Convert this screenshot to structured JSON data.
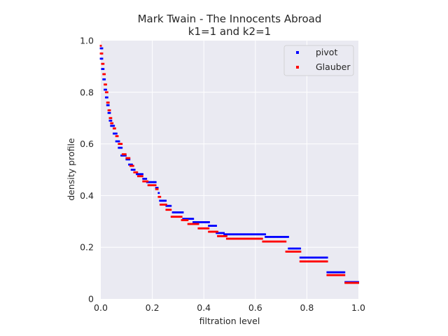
{
  "chart_data": {
    "type": "scatter",
    "title": "Mark Twain - The Innocents Abroad",
    "subtitle": "k1=1 and k2=1",
    "xlabel": "filtration level",
    "ylabel": "density profile",
    "xlim": [
      0.0,
      1.0
    ],
    "ylim": [
      0.0,
      1.0
    ],
    "xticks": [
      "0.0",
      "0.2",
      "0.4",
      "0.6",
      "0.8",
      "1.0"
    ],
    "yticks": [
      "0",
      "0.2",
      "0.4",
      "0.6",
      "0.8",
      "1.0"
    ],
    "grid": true,
    "background": "#eaeaf2",
    "legend_position": "top-right",
    "series": [
      {
        "name": "pivot",
        "color": "#0000ff",
        "segments": [
          {
            "x": [
              0.0,
              0.01
            ],
            "y": 0.97
          },
          {
            "x": [
              0.0,
              0.01
            ],
            "y": 0.93
          },
          {
            "x": [
              0.005,
              0.015
            ],
            "y": 0.89
          },
          {
            "x": [
              0.01,
              0.02
            ],
            "y": 0.85
          },
          {
            "x": [
              0.015,
              0.025
            ],
            "y": 0.81
          },
          {
            "x": [
              0.02,
              0.03
            ],
            "y": 0.78
          },
          {
            "x": [
              0.025,
              0.035
            ],
            "y": 0.75
          },
          {
            "x": [
              0.03,
              0.04
            ],
            "y": 0.72
          },
          {
            "x": [
              0.035,
              0.045
            ],
            "y": 0.69
          },
          {
            "x": [
              0.04,
              0.055
            ],
            "y": 0.67
          },
          {
            "x": [
              0.05,
              0.065
            ],
            "y": 0.64
          },
          {
            "x": [
              0.06,
              0.075
            ],
            "y": 0.61
          },
          {
            "x": [
              0.07,
              0.085
            ],
            "y": 0.585
          },
          {
            "x": [
              0.08,
              0.1
            ],
            "y": 0.555
          },
          {
            "x": [
              0.1,
              0.115
            ],
            "y": 0.54
          },
          {
            "x": [
              0.11,
              0.125
            ],
            "y": 0.52
          },
          {
            "x": [
              0.12,
              0.135
            ],
            "y": 0.5
          },
          {
            "x": [
              0.14,
              0.165
            ],
            "y": 0.483
          },
          {
            "x": [
              0.165,
              0.18
            ],
            "y": 0.465
          },
          {
            "x": [
              0.18,
              0.215
            ],
            "y": 0.452
          },
          {
            "x": [
              0.215,
              0.225
            ],
            "y": 0.43
          },
          {
            "x": [
              0.225,
              0.23
            ],
            "y": 0.41
          },
          {
            "x": [
              0.23,
              0.255
            ],
            "y": 0.38
          },
          {
            "x": [
              0.255,
              0.275
            ],
            "y": 0.36
          },
          {
            "x": [
              0.28,
              0.32
            ],
            "y": 0.335
          },
          {
            "x": [
              0.32,
              0.36
            ],
            "y": 0.31
          },
          {
            "x": [
              0.36,
              0.42
            ],
            "y": 0.297
          },
          {
            "x": [
              0.42,
              0.45
            ],
            "y": 0.283
          },
          {
            "x": [
              0.45,
              0.48
            ],
            "y": 0.255
          },
          {
            "x": [
              0.48,
              0.64
            ],
            "y": 0.25
          },
          {
            "x": [
              0.64,
              0.73
            ],
            "y": 0.24
          },
          {
            "x": [
              0.73,
              0.775
            ],
            "y": 0.195
          },
          {
            "x": [
              0.775,
              0.88
            ],
            "y": 0.16
          },
          {
            "x": [
              0.88,
              0.95
            ],
            "y": 0.103
          },
          {
            "x": [
              0.95,
              1.0
            ],
            "y": 0.065
          }
        ]
      },
      {
        "name": "Glauber",
        "color": "#ff0000",
        "segments": [
          {
            "x": [
              0.0,
              0.005
            ],
            "y": 0.98
          },
          {
            "x": [
              0.0,
              0.01
            ],
            "y": 0.95
          },
          {
            "x": [
              0.005,
              0.012
            ],
            "y": 0.91
          },
          {
            "x": [
              0.01,
              0.018
            ],
            "y": 0.87
          },
          {
            "x": [
              0.015,
              0.022
            ],
            "y": 0.83
          },
          {
            "x": [
              0.02,
              0.028
            ],
            "y": 0.8
          },
          {
            "x": [
              0.025,
              0.033
            ],
            "y": 0.76
          },
          {
            "x": [
              0.03,
              0.038
            ],
            "y": 0.73
          },
          {
            "x": [
              0.035,
              0.043
            ],
            "y": 0.7
          },
          {
            "x": [
              0.04,
              0.05
            ],
            "y": 0.68
          },
          {
            "x": [
              0.05,
              0.06
            ],
            "y": 0.66
          },
          {
            "x": [
              0.06,
              0.07
            ],
            "y": 0.63
          },
          {
            "x": [
              0.07,
              0.085
            ],
            "y": 0.6
          },
          {
            "x": [
              0.085,
              0.1
            ],
            "y": 0.56
          },
          {
            "x": [
              0.1,
              0.115
            ],
            "y": 0.545
          },
          {
            "x": [
              0.115,
              0.13
            ],
            "y": 0.515
          },
          {
            "x": [
              0.13,
              0.145
            ],
            "y": 0.49
          },
          {
            "x": [
              0.145,
              0.165
            ],
            "y": 0.475
          },
          {
            "x": [
              0.165,
              0.185
            ],
            "y": 0.455
          },
          {
            "x": [
              0.185,
              0.215
            ],
            "y": 0.44
          },
          {
            "x": [
              0.215,
              0.225
            ],
            "y": 0.425
          },
          {
            "x": [
              0.225,
              0.232
            ],
            "y": 0.395
          },
          {
            "x": [
              0.232,
              0.255
            ],
            "y": 0.365
          },
          {
            "x": [
              0.255,
              0.275
            ],
            "y": 0.345
          },
          {
            "x": [
              0.275,
              0.315
            ],
            "y": 0.318
          },
          {
            "x": [
              0.315,
              0.34
            ],
            "y": 0.305
          },
          {
            "x": [
              0.34,
              0.38
            ],
            "y": 0.29
          },
          {
            "x": [
              0.38,
              0.42
            ],
            "y": 0.273
          },
          {
            "x": [
              0.42,
              0.455
            ],
            "y": 0.26
          },
          {
            "x": [
              0.455,
              0.49
            ],
            "y": 0.243
          },
          {
            "x": [
              0.49,
              0.63
            ],
            "y": 0.233
          },
          {
            "x": [
              0.63,
              0.72
            ],
            "y": 0.222
          },
          {
            "x": [
              0.72,
              0.775
            ],
            "y": 0.183
          },
          {
            "x": [
              0.775,
              0.88
            ],
            "y": 0.145
          },
          {
            "x": [
              0.88,
              0.95
            ],
            "y": 0.092
          },
          {
            "x": [
              0.95,
              1.0
            ],
            "y": 0.062
          }
        ]
      }
    ]
  }
}
